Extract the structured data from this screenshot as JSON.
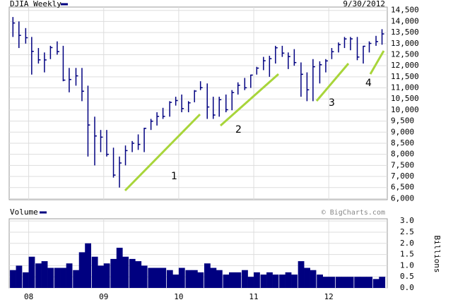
{
  "chart_data": [
    {
      "type": "ohlc",
      "date_label": "9/30/2012",
      "source": "© BigCharts.com",
      "annotations": [
        "1",
        "2",
        "3",
        "4"
      ],
      "x": [
        2007.79,
        2007.87,
        2007.96,
        2008.04,
        2008.13,
        2008.21,
        2008.29,
        2008.38,
        2008.46,
        2008.54,
        2008.63,
        2008.71,
        2008.79,
        2008.88,
        2008.96,
        2009.04,
        2009.13,
        2009.21,
        2009.29,
        2009.38,
        2009.46,
        2009.54,
        2009.63,
        2009.71,
        2009.79,
        2009.88,
        2009.96,
        2010.04,
        2010.13,
        2010.21,
        2010.29,
        2010.38,
        2010.46,
        2010.54,
        2010.63,
        2010.71,
        2010.79,
        2010.88,
        2010.96,
        2011.04,
        2011.13,
        2011.21,
        2011.29,
        2011.38,
        2011.46,
        2011.54,
        2011.63,
        2011.71,
        2011.79,
        2011.88,
        2011.96,
        2012.04,
        2012.13,
        2012.21,
        2012.29,
        2012.38,
        2012.46,
        2012.54,
        2012.63,
        2012.71
      ],
      "series": [
        {
          "name": "DJIA Weekly",
          "color": "#000080",
          "high": [
            14200,
            14000,
            13700,
            13300,
            12800,
            12600,
            12900,
            13100,
            12900,
            11900,
            11900,
            11900,
            11100,
            9700,
            9100,
            9100,
            8300,
            7900,
            8400,
            8600,
            8900,
            9200,
            9600,
            9900,
            10100,
            10400,
            10600,
            10700,
            10400,
            10900,
            11300,
            11200,
            10600,
            10600,
            10700,
            10900,
            11250,
            11450,
            11600,
            11950,
            12400,
            12450,
            12900,
            12900,
            12600,
            12750,
            12150,
            11700,
            12300,
            12200,
            12300,
            12800,
            13050,
            13300,
            13300,
            13300,
            12900,
            13100,
            13350,
            13650
          ],
          "low": [
            13300,
            12800,
            13000,
            11600,
            12100,
            11700,
            12300,
            12500,
            11300,
            10800,
            11100,
            10400,
            7900,
            7500,
            8100,
            7900,
            6950,
            6500,
            7500,
            8100,
            8200,
            8100,
            9100,
            9300,
            9600,
            9700,
            10200,
            9900,
            9900,
            10350,
            10900,
            9600,
            9600,
            9700,
            9900,
            9990,
            10700,
            10900,
            11000,
            11600,
            11800,
            11500,
            12100,
            12400,
            11850,
            12000,
            10600,
            10400,
            10400,
            11200,
            11700,
            12300,
            12600,
            12800,
            12700,
            12250,
            12100,
            12600,
            12900,
            12950
          ],
          "close": [
            13930,
            13371,
            13265,
            12650,
            12266,
            12263,
            12820,
            12638,
            11350,
            11378,
            11544,
            10850,
            9325,
            8829,
            8776,
            8000,
            7063,
            7609,
            8168,
            8500,
            8447,
            9172,
            9496,
            9712,
            9713,
            10345,
            10428,
            10067,
            10325,
            10857,
            11009,
            10137,
            9774,
            10466,
            10014,
            10788,
            11118,
            11006,
            11578,
            11892,
            12226,
            12320,
            12811,
            12570,
            12414,
            12143,
            11614,
            10913,
            11955,
            12046,
            12218,
            12633,
            12952,
            13212,
            13214,
            12393,
            12880,
            13009,
            13091,
            13437
          ]
        }
      ],
      "xlim": [
        2007.74,
        2012.78
      ],
      "ylim": [
        5950,
        14650
      ],
      "yticks": [
        {
          "value": 6000,
          "label": "6,000"
        },
        {
          "value": 6500,
          "label": "6,500"
        },
        {
          "value": 7000,
          "label": "7,000"
        },
        {
          "value": 7500,
          "label": "7,500"
        },
        {
          "value": 8000,
          "label": "8,000"
        },
        {
          "value": 8500,
          "label": "8,500"
        },
        {
          "value": 9000,
          "label": "9,000"
        },
        {
          "value": 9500,
          "label": "9,500"
        },
        {
          "value": 10000,
          "label": "10,000"
        },
        {
          "value": 10500,
          "label": "10,500"
        },
        {
          "value": 11000,
          "label": "11,000"
        },
        {
          "value": 11500,
          "label": "11,500"
        },
        {
          "value": 12000,
          "label": "12,000"
        },
        {
          "value": 12500,
          "label": "12,500"
        },
        {
          "value": 13000,
          "label": "13,000"
        },
        {
          "value": 13500,
          "label": "13,500"
        },
        {
          "value": 14000,
          "label": "14,000"
        },
        {
          "value": 14500,
          "label": "14,500"
        }
      ],
      "grid": true
    },
    {
      "type": "bar",
      "ylabel": "Billions",
      "x": [
        2007.79,
        2007.87,
        2007.96,
        2008.04,
        2008.13,
        2008.21,
        2008.29,
        2008.38,
        2008.46,
        2008.54,
        2008.63,
        2008.71,
        2008.79,
        2008.88,
        2008.96,
        2009.04,
        2009.13,
        2009.21,
        2009.29,
        2009.38,
        2009.46,
        2009.54,
        2009.63,
        2009.71,
        2009.79,
        2009.88,
        2009.96,
        2010.04,
        2010.13,
        2010.21,
        2010.29,
        2010.38,
        2010.46,
        2010.54,
        2010.63,
        2010.71,
        2010.79,
        2010.88,
        2010.96,
        2011.04,
        2011.13,
        2011.21,
        2011.29,
        2011.38,
        2011.46,
        2011.54,
        2011.63,
        2011.71,
        2011.79,
        2011.88,
        2011.96,
        2012.04,
        2012.13,
        2012.21,
        2012.29,
        2012.38,
        2012.46,
        2012.54,
        2012.63,
        2012.71
      ],
      "series": [
        {
          "name": "Volume",
          "color": "#000080",
          "values": [
            0.8,
            1.0,
            0.7,
            1.4,
            1.1,
            1.2,
            0.9,
            0.9,
            0.9,
            1.1,
            0.8,
            1.6,
            2.0,
            1.4,
            1.0,
            1.1,
            1.3,
            1.8,
            1.4,
            1.3,
            1.2,
            1.0,
            0.9,
            0.9,
            0.9,
            0.8,
            0.6,
            0.9,
            0.8,
            0.8,
            0.7,
            1.1,
            0.9,
            0.8,
            0.6,
            0.7,
            0.7,
            0.8,
            0.5,
            0.7,
            0.6,
            0.7,
            0.6,
            0.6,
            0.7,
            0.6,
            1.2,
            0.9,
            0.8,
            0.6,
            0.5,
            0.5,
            0.5,
            0.5,
            0.5,
            0.5,
            0.5,
            0.5,
            0.4,
            0.5
          ]
        }
      ],
      "xlim": [
        2007.74,
        2012.78
      ],
      "ylim": [
        0,
        3.1
      ],
      "xticks": [
        {
          "value": 2008,
          "label": "08"
        },
        {
          "value": 2009,
          "label": "09"
        },
        {
          "value": 2010,
          "label": "10"
        },
        {
          "value": 2011,
          "label": "11"
        },
        {
          "value": 2012,
          "label": "12"
        }
      ],
      "yticks": [
        {
          "value": 0,
          "label": "0.0"
        },
        0.5,
        {
          "value": 1,
          "label": "1.0"
        },
        1.5,
        {
          "value": 2,
          "label": "2.0"
        },
        2.5,
        {
          "value": 3,
          "label": "3.0"
        }
      ],
      "grid": true
    }
  ]
}
